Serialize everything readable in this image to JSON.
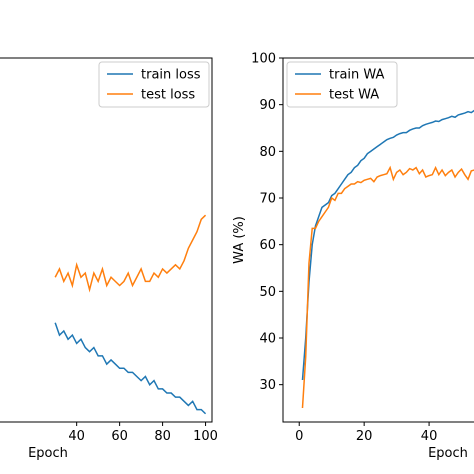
{
  "chart_data": [
    {
      "type": "line",
      "xlabel": "Epoch",
      "ylabel": "",
      "xlim": [
        -5,
        103
      ],
      "ylim": [
        0.44,
        1.32
      ],
      "xticks": [
        40,
        60,
        80,
        100
      ],
      "xtick_labels": [
        "40",
        "60",
        "80",
        "100"
      ],
      "legend": "top-right",
      "grid": false,
      "series": [
        {
          "name": "train loss",
          "color": "#1f77b4",
          "x": [
            30,
            32,
            34,
            36,
            38,
            40,
            42,
            44,
            46,
            48,
            50,
            52,
            54,
            56,
            58,
            60,
            62,
            64,
            66,
            68,
            70,
            72,
            74,
            76,
            78,
            80,
            82,
            84,
            86,
            88,
            90,
            92,
            94,
            96,
            98,
            100
          ],
          "y": [
            0.68,
            0.65,
            0.66,
            0.64,
            0.65,
            0.63,
            0.64,
            0.62,
            0.61,
            0.62,
            0.6,
            0.6,
            0.58,
            0.59,
            0.58,
            0.57,
            0.57,
            0.56,
            0.56,
            0.55,
            0.54,
            0.55,
            0.53,
            0.54,
            0.52,
            0.52,
            0.51,
            0.51,
            0.5,
            0.5,
            0.49,
            0.48,
            0.49,
            0.47,
            0.47,
            0.46
          ]
        },
        {
          "name": "test loss",
          "color": "#ff7f0e",
          "x": [
            30,
            32,
            34,
            36,
            38,
            40,
            42,
            44,
            46,
            48,
            50,
            52,
            54,
            56,
            58,
            60,
            62,
            64,
            66,
            68,
            70,
            72,
            74,
            76,
            78,
            80,
            82,
            84,
            86,
            88,
            90,
            92,
            94,
            96,
            98,
            100
          ],
          "y": [
            0.79,
            0.81,
            0.78,
            0.8,
            0.77,
            0.82,
            0.79,
            0.8,
            0.76,
            0.8,
            0.78,
            0.81,
            0.77,
            0.79,
            0.78,
            0.77,
            0.78,
            0.8,
            0.77,
            0.79,
            0.81,
            0.78,
            0.78,
            0.8,
            0.79,
            0.81,
            0.8,
            0.81,
            0.82,
            0.81,
            0.83,
            0.86,
            0.88,
            0.9,
            0.93,
            0.94
          ]
        }
      ]
    },
    {
      "type": "line",
      "xlabel": "Epoch",
      "ylabel": "WA (%)",
      "xlim": [
        -5,
        60
      ],
      "ylim": [
        22,
        100
      ],
      "xticks": [
        0,
        20,
        40
      ],
      "xtick_labels": [
        "0",
        "20",
        "40"
      ],
      "yticks": [
        30,
        40,
        50,
        60,
        70,
        80,
        90,
        100
      ],
      "ytick_labels": [
        "30",
        "40",
        "50",
        "60",
        "70",
        "80",
        "90",
        "100"
      ],
      "legend": "top-left",
      "grid": false,
      "series": [
        {
          "name": "train WA",
          "color": "#1f77b4",
          "x": [
            1,
            2,
            3,
            4,
            5,
            6,
            7,
            8,
            9,
            10,
            11,
            12,
            13,
            14,
            15,
            16,
            17,
            18,
            19,
            20,
            21,
            22,
            23,
            24,
            25,
            26,
            27,
            28,
            29,
            30,
            31,
            32,
            33,
            34,
            35,
            36,
            37,
            38,
            39,
            40,
            41,
            42,
            43,
            44,
            45,
            46,
            47,
            48,
            49,
            50,
            51,
            52,
            53,
            54,
            55,
            56,
            57,
            58,
            59,
            60
          ],
          "y": [
            31,
            40,
            52,
            60,
            64,
            66,
            68,
            68.5,
            69,
            70.5,
            71,
            72,
            73,
            74,
            75,
            75.5,
            76.5,
            77,
            78,
            78.5,
            79.5,
            80,
            80.5,
            81,
            81.5,
            82,
            82.5,
            82.8,
            83,
            83.5,
            83.8,
            84,
            84,
            84.5,
            84.8,
            85,
            85,
            85.5,
            85.8,
            86,
            86.2,
            86.5,
            86.4,
            86.8,
            87,
            87.2,
            87.5,
            87.3,
            87.8,
            88,
            88.2,
            88.5,
            88.3,
            88.8,
            89,
            89.2,
            89.3,
            89.5,
            89.7,
            90
          ]
        },
        {
          "name": "test WA",
          "color": "#ff7f0e",
          "x": [
            1,
            2,
            3,
            4,
            5,
            6,
            7,
            8,
            9,
            10,
            11,
            12,
            13,
            14,
            15,
            16,
            17,
            18,
            19,
            20,
            21,
            22,
            23,
            24,
            25,
            26,
            27,
            28,
            29,
            30,
            31,
            32,
            33,
            34,
            35,
            36,
            37,
            38,
            39,
            40,
            41,
            42,
            43,
            44,
            45,
            46,
            47,
            48,
            49,
            50,
            51,
            52,
            53,
            54,
            55,
            56,
            57,
            58,
            59,
            60
          ],
          "y": [
            25,
            36,
            56,
            63.5,
            63.5,
            65,
            66,
            67,
            68,
            70,
            69.5,
            71,
            71,
            72,
            72.5,
            73,
            73,
            73.5,
            73.3,
            73.8,
            74,
            74.2,
            73.5,
            74.5,
            74.8,
            75,
            75.2,
            76.5,
            74,
            75.5,
            76,
            75,
            75.5,
            76.3,
            76,
            76.5,
            75.2,
            76,
            74.5,
            74.8,
            75,
            76.5,
            75,
            76,
            74.8,
            75.5,
            76,
            74.5,
            75.5,
            76.2,
            75,
            74,
            75.8,
            76,
            75.2,
            75.5,
            74,
            76.5,
            75,
            75
          ]
        }
      ]
    }
  ]
}
